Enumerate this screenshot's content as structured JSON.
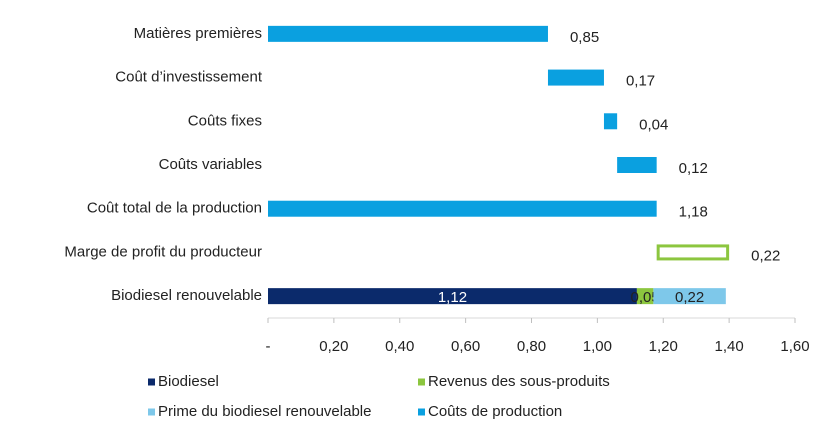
{
  "chart_data": {
    "type": "waterfall",
    "categories": [
      "Matières premières",
      "Coût d’investissement",
      "Coûts fixes",
      "Coûts variables",
      "Coût total de la production",
      "Marge de profit du producteur",
      "Biodiesel renouvelable"
    ],
    "totals": [
      4,
      6
    ],
    "series": [
      {
        "name": "Biodiesel",
        "color": "#0b2a6b",
        "label_color": "#ffffff",
        "values": [
          null,
          null,
          null,
          null,
          null,
          null,
          1.12
        ],
        "value_labels": [
          null,
          null,
          null,
          null,
          null,
          null,
          "1,12"
        ]
      },
      {
        "name": "Revenus des sous-produits",
        "color": "#8cc63f",
        "label_color": "#222222",
        "values": [
          null,
          null,
          null,
          null,
          null,
          null,
          0.05
        ],
        "value_labels": [
          null,
          null,
          null,
          null,
          null,
          null,
          "0,05"
        ]
      },
      {
        "name": "Prime du biodiesel renouvelable",
        "color": "#7ec8ea",
        "label_color": "#222222",
        "values": [
          null,
          null,
          null,
          null,
          null,
          null,
          0.22
        ],
        "value_labels": [
          null,
          null,
          null,
          null,
          null,
          null,
          "0,22"
        ]
      },
      {
        "name": "Coûts de production",
        "color": "#0aa0e0",
        "label_color": "#222222",
        "values": [
          0.85,
          0.17,
          0.04,
          0.12,
          1.18,
          null,
          null
        ],
        "value_labels": [
          "0,85",
          "0,17",
          "0,04",
          "0,12",
          "1,18",
          null,
          null
        ]
      },
      {
        "color": "#8cc63f",
        "style": "outline",
        "label_color": "#222222",
        "values": [
          null,
          null,
          null,
          null,
          null,
          0.22,
          null
        ],
        "value_labels": [
          null,
          null,
          null,
          null,
          null,
          "0,22",
          null
        ]
      }
    ],
    "xlim": [
      0,
      1.6
    ],
    "xticks": [
      {
        "value": 0,
        "label": "-"
      },
      {
        "value": 0.2,
        "label": "0,20"
      },
      {
        "value": 0.4,
        "label": "0,40"
      },
      {
        "value": 0.6,
        "label": "0,60"
      },
      {
        "value": 0.8,
        "label": "0,80"
      },
      {
        "value": 1.0,
        "label": "1,00"
      },
      {
        "value": 1.2,
        "label": "1,20"
      },
      {
        "value": 1.4,
        "label": "1,40"
      },
      {
        "value": 1.6,
        "label": "1,60"
      }
    ]
  }
}
